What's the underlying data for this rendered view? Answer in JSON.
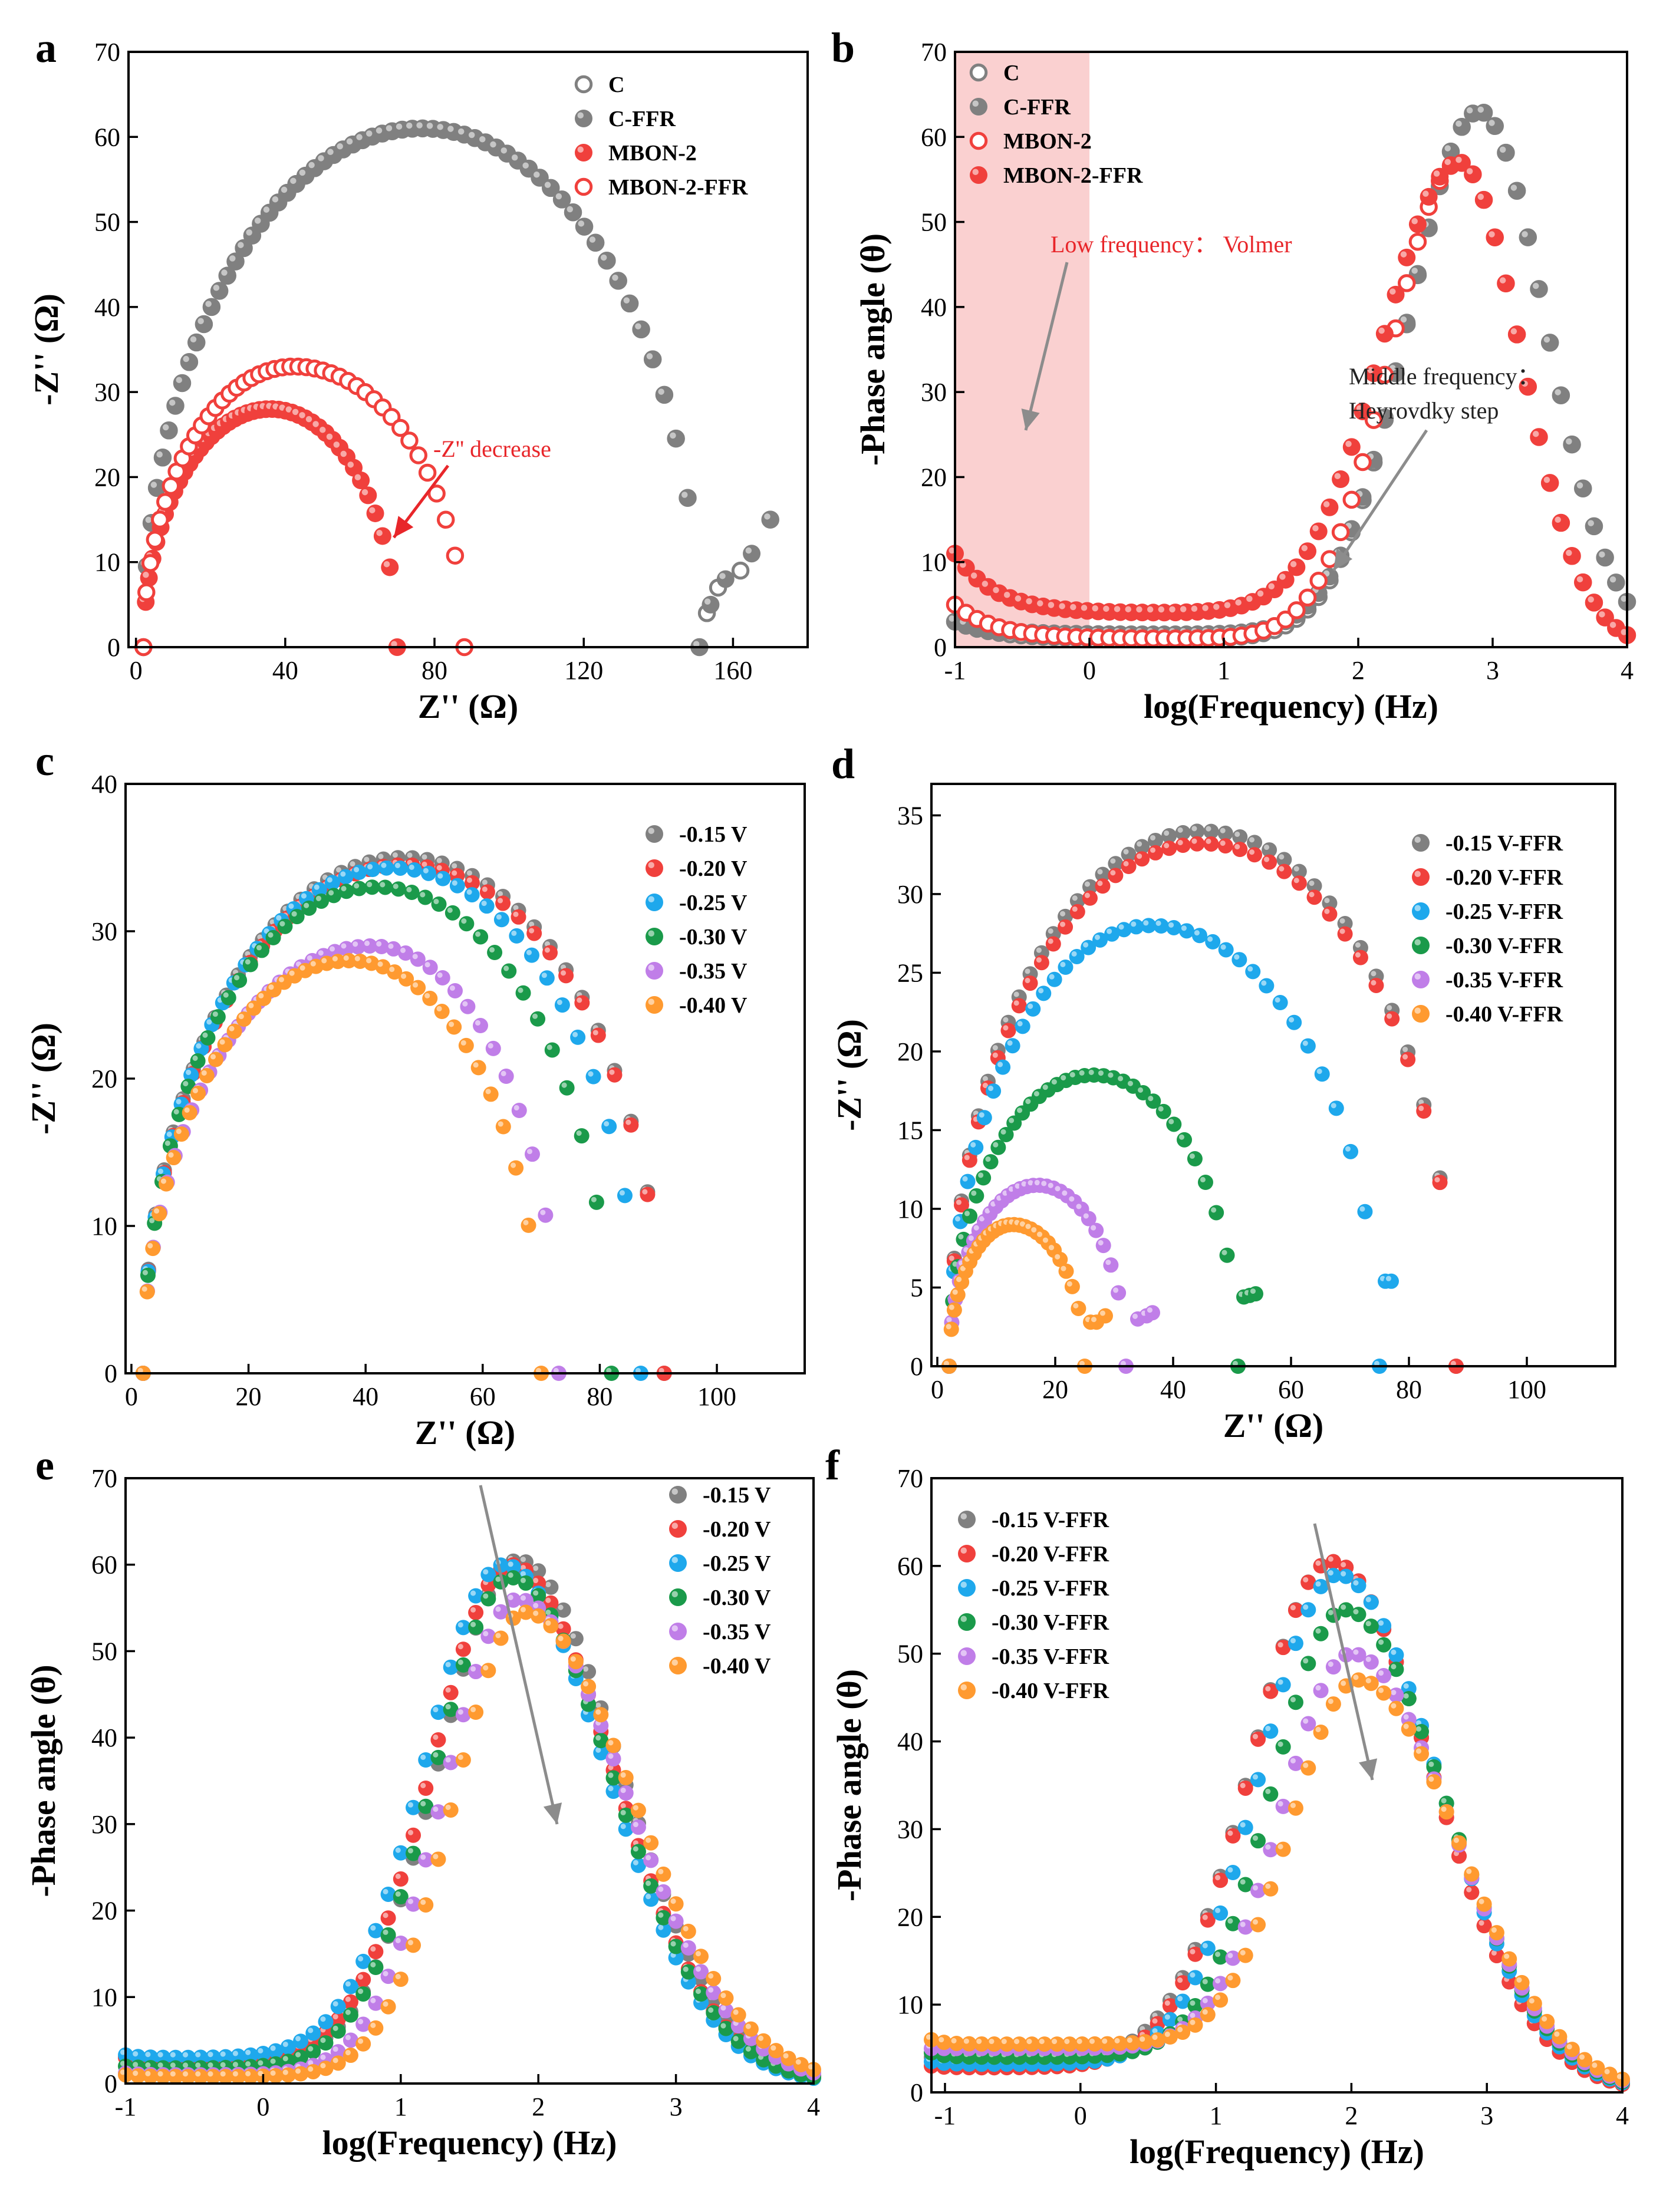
{
  "colors": {
    "gray": "#808080",
    "red": "#f0403c",
    "blue": "#1ea8ec",
    "green": "#1a9a4a",
    "purple": "#c07ee8",
    "orange": "#ff9a30",
    "arrow": "#8c8c8c",
    "shade": "#f9c8c8"
  },
  "chart_data": [
    {
      "panel": "a",
      "type": "scatter",
      "xlabel": "Z'' (Ω)",
      "ylabel": "-Z'' (Ω)",
      "xlim": [
        -2,
        180
      ],
      "ylim": [
        0,
        70
      ],
      "xticks": [
        0,
        40,
        80,
        120,
        160
      ],
      "yticks": [
        0,
        10,
        20,
        30,
        40,
        50,
        60,
        70
      ],
      "legend_position": "top-right",
      "annotations": [
        {
          "text": "-Z'' decrease"
        }
      ],
      "series": [
        {
          "name": "C",
          "color": "gray",
          "marker": "open",
          "kind": "arc",
          "x0": 2,
          "x1": 151,
          "peak": 61,
          "skew": 0.5,
          "tail": [
            [
              153,
              4
            ],
            [
              156,
              7
            ],
            [
              162,
              9
            ],
            [
              170,
              15
            ]
          ],
          "n": 60
        },
        {
          "name": "C-FFR",
          "color": "gray",
          "marker": "filled",
          "kind": "arc",
          "x0": 2,
          "x1": 151,
          "peak": 61,
          "skew": 0.5,
          "tail": [
            [
              154,
              5
            ],
            [
              158,
              8
            ],
            [
              165,
              11
            ],
            [
              170,
              15
            ]
          ],
          "n": 60
        },
        {
          "name": "MBON-2",
          "color": "red",
          "marker": "filled",
          "kind": "arc",
          "x0": 2,
          "x1": 70,
          "peak": 28,
          "skew": 0.5,
          "n": 44
        },
        {
          "name": "MBON-2-FFR",
          "color": "red",
          "marker": "open",
          "kind": "arc",
          "x0": 2,
          "x1": 88,
          "peak": 33,
          "skew": 0.47,
          "n": 44
        }
      ]
    },
    {
      "panel": "b",
      "type": "scatter",
      "xlabel": "log(Frequency) (Hz)",
      "ylabel": "-Phase angle (θ)",
      "xlim": [
        -1,
        4
      ],
      "ylim": [
        0,
        70
      ],
      "xticks": [
        -1,
        0,
        1,
        2,
        3,
        4
      ],
      "yticks": [
        0,
        10,
        20,
        30,
        40,
        50,
        60,
        70
      ],
      "legend_position": "top-left",
      "shaded_region": {
        "x0": -1,
        "x1": 0
      },
      "annotations": [
        {
          "text": "Low frequency： Volmer"
        },
        {
          "text": "Middle frequency："
        },
        {
          "text": "Heyrovdky step"
        }
      ],
      "series": [
        {
          "name": "C",
          "color": "gray",
          "marker": "open",
          "kind": "phase",
          "base": 3,
          "floor": 1,
          "peak": 63,
          "center": 2.9,
          "lw": 0.75,
          "rw": 0.7,
          "rise": 0.3,
          "n": 62
        },
        {
          "name": "C-FFR",
          "color": "gray",
          "marker": "filled",
          "kind": "phase",
          "base": 3,
          "floor": 1.5,
          "peak": 63,
          "center": 2.9,
          "lw": 0.75,
          "rw": 0.7,
          "rise": 0.3,
          "n": 62
        },
        {
          "name": "MBON-2",
          "color": "red",
          "marker": "open",
          "kind": "phase",
          "base": 5,
          "floor": 1,
          "peak": 57,
          "center": 2.75,
          "lw": 0.72,
          "rw": 0.65,
          "rise": 0.3,
          "n": 62
        },
        {
          "name": "MBON-2-FFR",
          "color": "red",
          "marker": "filled",
          "kind": "phase",
          "base": 11,
          "floor": 4,
          "peak": 57,
          "center": 2.75,
          "lw": 0.8,
          "rw": 0.65,
          "rise": 0.3,
          "n": 62
        }
      ]
    },
    {
      "panel": "c",
      "type": "scatter",
      "xlabel": "Z'' (Ω)",
      "ylabel": "-Z'' (Ω)",
      "xlim": [
        -1,
        115
      ],
      "ylim": [
        0,
        40
      ],
      "xticks": [
        0,
        20,
        40,
        60,
        80,
        100
      ],
      "yticks": [
        0,
        10,
        20,
        30,
        40
      ],
      "legend_position": "top-right",
      "series": [
        {
          "name": "-0.15 V",
          "color": "gray",
          "marker": "filled",
          "kind": "arc",
          "x0": 2,
          "x1": 91,
          "peak": 35,
          "skew": 0.5,
          "n": 40
        },
        {
          "name": "-0.20 V",
          "color": "red",
          "marker": "filled",
          "kind": "arc",
          "x0": 2,
          "x1": 91,
          "peak": 34.5,
          "skew": 0.5,
          "n": 40
        },
        {
          "name": "-0.25 V",
          "color": "blue",
          "marker": "filled",
          "kind": "arc",
          "x0": 2,
          "x1": 87,
          "peak": 34.3,
          "skew": 0.5,
          "n": 40
        },
        {
          "name": "-0.30 V",
          "color": "green",
          "marker": "filled",
          "kind": "arc",
          "x0": 2,
          "x1": 82,
          "peak": 33,
          "skew": 0.5,
          "n": 40
        },
        {
          "name": "-0.35 V",
          "color": "purple",
          "marker": "filled",
          "kind": "arc",
          "x0": 2,
          "x1": 73,
          "peak": 29,
          "skew": 0.55,
          "n": 40
        },
        {
          "name": "-0.40 V",
          "color": "orange",
          "marker": "filled",
          "kind": "arc",
          "x0": 2,
          "x1": 70,
          "peak": 28,
          "skew": 0.52,
          "n": 40
        }
      ]
    },
    {
      "panel": "d",
      "type": "scatter",
      "xlabel": "Z'' (Ω)",
      "ylabel": "-Z'' (Ω)",
      "xlim": [
        -1,
        115
      ],
      "ylim": [
        0,
        37
      ],
      "xticks": [
        0,
        20,
        40,
        60,
        80,
        100
      ],
      "yticks": [
        0,
        5,
        10,
        15,
        20,
        25,
        30,
        35
      ],
      "legend_position": "top-right",
      "series": [
        {
          "name": "-0.15 V-FFR",
          "color": "gray",
          "marker": "filled",
          "kind": "arc",
          "x0": 2,
          "x1": 88,
          "peak": 34,
          "skew": 0.5,
          "n": 40
        },
        {
          "name": "-0.20 V-FFR",
          "color": "red",
          "marker": "filled",
          "kind": "arc",
          "x0": 2,
          "x1": 88,
          "peak": 33.2,
          "skew": 0.5,
          "n": 40
        },
        {
          "name": "-0.25 V-FFR",
          "color": "blue",
          "marker": "filled",
          "kind": "arc",
          "x0": 2,
          "x1": 75,
          "peak": 28,
          "skew": 0.47,
          "tail": [
            [
              76,
              5.4
            ],
            [
              77,
              5.4
            ]
          ],
          "n": 38
        },
        {
          "name": "-0.30 V-FFR",
          "color": "green",
          "marker": "filled",
          "kind": "arc",
          "x0": 2,
          "x1": 51,
          "peak": 18.5,
          "skew": 0.5,
          "tail": [
            [
              52,
              4.4
            ],
            [
              53,
              4.5
            ],
            [
              54,
              4.6
            ]
          ],
          "n": 34
        },
        {
          "name": "-0.35 V-FFR",
          "color": "purple",
          "marker": "filled",
          "kind": "arc",
          "x0": 2,
          "x1": 32,
          "peak": 11.5,
          "skew": 0.5,
          "tail": [
            [
              34,
              3
            ],
            [
              35.5,
              3.2
            ],
            [
              36.5,
              3.4
            ]
          ],
          "n": 30
        },
        {
          "name": "-0.40 V-FFR",
          "color": "orange",
          "marker": "filled",
          "kind": "arc",
          "x0": 2,
          "x1": 25,
          "peak": 9,
          "skew": 0.47,
          "tail": [
            [
              26,
              2.8
            ],
            [
              27,
              2.8
            ],
            [
              28.5,
              3.2
            ]
          ],
          "n": 28
        }
      ]
    },
    {
      "panel": "e",
      "type": "scatter",
      "xlabel": "log(Frequency) (Hz)",
      "ylabel": "-Phase angle (θ)",
      "xlim": [
        -1,
        4
      ],
      "ylim": [
        0,
        70
      ],
      "xticks": [
        -1,
        0,
        1,
        2,
        3,
        4
      ],
      "yticks": [
        0,
        10,
        20,
        30,
        40,
        50,
        60,
        70
      ],
      "legend_position": "top-right",
      "series": [
        {
          "name": "-0.15 V",
          "color": "gray",
          "marker": "filled",
          "kind": "phase",
          "base": 3,
          "floor": 2.5,
          "peak": 60.5,
          "center": 1.85,
          "lw": 0.8,
          "rw": 1.05,
          "rise": 0.1,
          "n": 56
        },
        {
          "name": "-0.20 V",
          "color": "red",
          "marker": "filled",
          "kind": "phase",
          "base": 3,
          "floor": 2.5,
          "peak": 60,
          "center": 1.8,
          "lw": 0.8,
          "rw": 1.05,
          "rise": 0.1,
          "n": 56
        },
        {
          "name": "-0.25 V",
          "color": "blue",
          "marker": "filled",
          "kind": "phase",
          "base": 3.3,
          "floor": 3,
          "peak": 60,
          "center": 1.75,
          "lw": 0.8,
          "rw": 1.05,
          "rise": 0.1,
          "n": 56
        },
        {
          "name": "-0.30 V",
          "color": "green",
          "marker": "filled",
          "kind": "phase",
          "base": 2,
          "floor": 1.8,
          "peak": 58.5,
          "center": 1.8,
          "lw": 0.78,
          "rw": 1.05,
          "rise": 0.1,
          "n": 56
        },
        {
          "name": "-0.35 V",
          "color": "purple",
          "marker": "filled",
          "kind": "phase",
          "base": 1.2,
          "floor": 1,
          "peak": 56,
          "center": 1.85,
          "lw": 0.75,
          "rw": 1.1,
          "rise": 0.1,
          "n": 56
        },
        {
          "name": "-0.40 V",
          "color": "orange",
          "marker": "filled",
          "kind": "phase",
          "base": 1,
          "floor": 0.8,
          "peak": 54.5,
          "center": 1.9,
          "lw": 0.72,
          "rw": 1.12,
          "rise": 0.1,
          "n": 56
        }
      ]
    },
    {
      "panel": "f",
      "type": "scatter",
      "xlabel": "log(Frequency) (Hz)",
      "ylabel": "-Phase angle (θ)",
      "xlim": [
        -1.1,
        4
      ],
      "ylim": [
        0,
        70
      ],
      "xticks": [
        -1,
        0,
        1,
        2,
        3,
        4
      ],
      "yticks": [
        0,
        10,
        20,
        30,
        40,
        50,
        60,
        70
      ],
      "legend_position": "top-left",
      "series": [
        {
          "name": "-0.15 V-FFR",
          "color": "gray",
          "marker": "filled",
          "kind": "phase",
          "base": 4,
          "floor": 3.5,
          "peak": 60.5,
          "center": 1.85,
          "lw": 0.82,
          "rw": 1.05,
          "rise": 0.1,
          "n": 56
        },
        {
          "name": "-0.20 V-FFR",
          "color": "red",
          "marker": "filled",
          "kind": "phase",
          "base": 3,
          "floor": 2.8,
          "peak": 60.5,
          "center": 1.85,
          "lw": 0.82,
          "rw": 1.05,
          "rise": 0.1,
          "n": 56
        },
        {
          "name": "-0.25 V-FFR",
          "color": "blue",
          "marker": "filled",
          "kind": "phase",
          "base": 3.5,
          "floor": 3.2,
          "peak": 59,
          "center": 1.9,
          "lw": 0.8,
          "rw": 1.05,
          "rise": 0.1,
          "n": 56
        },
        {
          "name": "-0.30 V-FFR",
          "color": "green",
          "marker": "filled",
          "kind": "phase",
          "base": 4.5,
          "floor": 4,
          "peak": 55,
          "center": 1.95,
          "lw": 0.75,
          "rw": 1.05,
          "rise": 0.1,
          "n": 56
        },
        {
          "name": "-0.35 V-FFR",
          "color": "purple",
          "marker": "filled",
          "kind": "phase",
          "base": 5,
          "floor": 5,
          "peak": 50,
          "center": 2.0,
          "lw": 0.72,
          "rw": 1.05,
          "rise": 0.1,
          "n": 56
        },
        {
          "name": "-0.40 V-FFR",
          "color": "orange",
          "marker": "filled",
          "kind": "phase",
          "base": 6,
          "floor": 5.5,
          "peak": 47,
          "center": 2.05,
          "lw": 0.7,
          "rw": 1.05,
          "rise": 0.1,
          "n": 56
        }
      ]
    }
  ]
}
